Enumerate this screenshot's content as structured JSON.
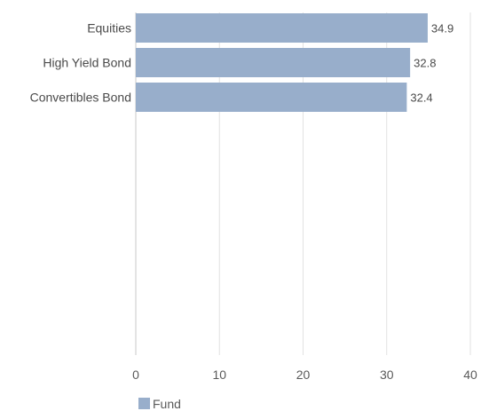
{
  "chart_data": {
    "type": "bar",
    "orientation": "horizontal",
    "categories": [
      "Equities",
      "High Yield Bond",
      "Convertibles Bond"
    ],
    "series": [
      {
        "name": "Fund",
        "values": [
          34.9,
          32.8,
          32.4
        ],
        "color": "#98aecb"
      }
    ],
    "title": "",
    "xlabel": "",
    "ylabel": "",
    "xlim": [
      0,
      40
    ],
    "xticks": [
      0,
      10,
      20,
      30,
      40
    ],
    "grid": true,
    "legend_position": "bottom-left"
  }
}
